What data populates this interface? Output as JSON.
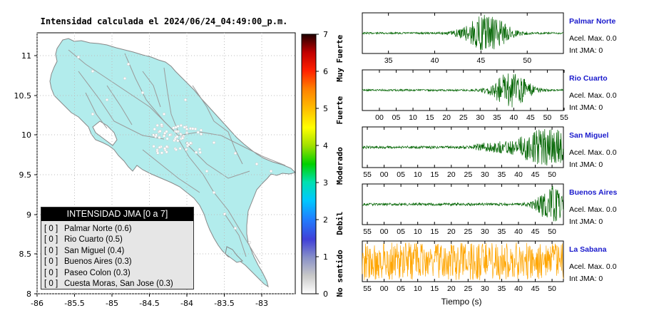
{
  "map": {
    "title": "Intensidad calculada el 2024/06/24_04:49:00_p.m.",
    "x_ticks": [
      "-86",
      "-85.5",
      "-85",
      "-84.5",
      "-84",
      "-83.5",
      "-83"
    ],
    "y_ticks": [
      "11",
      "10.5",
      "10",
      "9.5",
      "9",
      "8.5",
      "8"
    ],
    "land_color": "#b2ecec",
    "road_color": "#9a9a9a",
    "border_color": "#8a8a8a"
  },
  "colorbar": {
    "ticks": [
      "0",
      "1",
      "2",
      "3",
      "4",
      "5",
      "6",
      "7"
    ],
    "categories": [
      "No sentido",
      "Debil",
      "Moderado",
      "Fuerte",
      "Muy Fuerte"
    ]
  },
  "legend": {
    "title": "INTENSIDAD JMA [0 a 7]",
    "items": [
      {
        "bracket": "[ 0 ]",
        "label": "Palmar Norte (0.6)"
      },
      {
        "bracket": "[ 0 ]",
        "label": "Rio Cuarto (0.5)"
      },
      {
        "bracket": "[ 0 ]",
        "label": "San Miguel (0.4)"
      },
      {
        "bracket": "[ 0 ]",
        "label": "Buenos Aires (0.3)"
      },
      {
        "bracket": "[ 0 ]",
        "label": "Paseo Colon (0.3)"
      },
      {
        "bracket": "[ 0 ]",
        "label": "Cuesta Moras, San Jose (0.3)"
      }
    ]
  },
  "chart_data": {
    "type": "line",
    "xlabel": "Tiempo (s)",
    "series": [
      {
        "name": "Palmar Norte",
        "accel": "Acel. Max. 0.0",
        "jma": "Int JMA: 0",
        "color": "#006400",
        "x_ticks": [
          "35",
          "40",
          "45",
          "50"
        ],
        "peak_center": 0.62,
        "peak_width": 0.11,
        "noise": 0.05
      },
      {
        "name": "Rio Cuarto",
        "accel": "Acel. Max. 0.0",
        "jma": "Int JMA: 0",
        "color": "#006400",
        "x_ticks": [
          "00",
          "05",
          "10",
          "15",
          "20",
          "25",
          "30",
          "35",
          "40",
          "45",
          "50",
          "55"
        ],
        "peak_center": 0.74,
        "peak_width": 0.09,
        "noise": 0.05
      },
      {
        "name": "San Miguel",
        "accel": "Acel. Max. 0.0",
        "jma": "Int JMA: 0",
        "color": "#006400",
        "x_ticks": [
          "55",
          "00",
          "05",
          "10",
          "15",
          "20",
          "25",
          "30",
          "35",
          "40",
          "45",
          "50"
        ],
        "peak_center": 0.92,
        "peak_width": 0.16,
        "noise": 0.07
      },
      {
        "name": "Buenos Aires",
        "accel": "Acel. Max. 0.0",
        "jma": "Int JMA: 0",
        "color": "#006400",
        "x_ticks": [
          "55",
          "00",
          "05",
          "10",
          "15",
          "20",
          "25",
          "30",
          "35",
          "40",
          "45",
          "50"
        ],
        "peak_center": 0.94,
        "peak_width": 0.07,
        "noise": 0.07
      },
      {
        "name": "La Sabana",
        "accel": "Acel. Max. 0.0",
        "jma": "Int JMA: 0",
        "color": "#ffa500",
        "x_ticks": [
          "55",
          "00",
          "05",
          "10",
          "15",
          "20",
          "25",
          "30",
          "35",
          "40",
          "45",
          "50"
        ],
        "peak_center": 0.5,
        "peak_width": 10,
        "noise": 0.45
      }
    ]
  }
}
